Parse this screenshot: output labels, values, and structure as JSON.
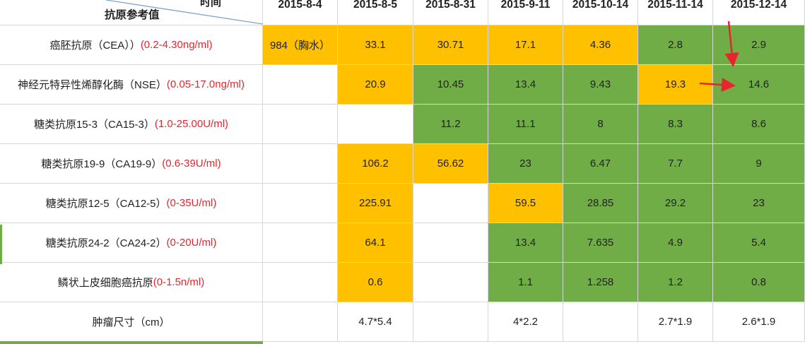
{
  "header": {
    "corner_top": "时间",
    "corner_bottom": "抗原参考值",
    "dates": [
      "2015-8-4",
      "2015-8-5",
      "2015-8-31",
      "2015-9-11",
      "2015-10-14",
      "2015-11-14",
      "2015-12-14"
    ]
  },
  "rows": [
    {
      "name": "癌胚抗原（CEA））",
      "range": "(0.2-4.30ng/ml)",
      "values": [
        "984（胸水）",
        "33.1",
        "30.71",
        "17.1",
        "4.36",
        "2.8",
        "2.9"
      ],
      "fills": [
        "orange",
        "orange",
        "orange",
        "orange",
        "orange",
        "green",
        "green"
      ]
    },
    {
      "name": "神经元特异性烯醇化酶（NSE）",
      "range": "(0.05-17.0ng/ml)",
      "values": [
        "",
        "20.9",
        "10.45",
        "13.4",
        "9.43",
        "19.3",
        "14.6"
      ],
      "fills": [
        "",
        "orange",
        "green",
        "green",
        "green",
        "orange",
        "green"
      ]
    },
    {
      "name": "糖类抗原15-3（CA15-3）",
      "range": "(1.0-25.00U/ml)",
      "values": [
        "",
        "",
        "11.2",
        "11.1",
        "8",
        "8.3",
        "8.6"
      ],
      "fills": [
        "",
        "",
        "green",
        "green",
        "green",
        "green",
        "green"
      ]
    },
    {
      "name": "糖类抗原19-9（CA19-9）",
      "range": "(0.6-39U/ml)",
      "values": [
        "",
        "106.2",
        "56.62",
        "23",
        "6.47",
        "7.7",
        "9"
      ],
      "fills": [
        "",
        "orange",
        "orange",
        "green",
        "green",
        "green",
        "green"
      ]
    },
    {
      "name": "糖类抗原12-5（CA12-5）",
      "range": "(0-35U/ml)",
      "values": [
        "",
        "225.91",
        "",
        "59.5",
        "28.85",
        "29.2",
        "23"
      ],
      "fills": [
        "",
        "orange",
        "",
        "orange",
        "green",
        "green",
        "green"
      ]
    },
    {
      "name": "糖类抗原24-2（CA24-2）",
      "range": "(0-20U/ml)",
      "values": [
        "",
        "64.1",
        "",
        "13.4",
        "7.635",
        "4.9",
        "5.4"
      ],
      "fills": [
        "",
        "orange",
        "",
        "green",
        "green",
        "green",
        "green"
      ]
    },
    {
      "name": "鳞状上皮细胞癌抗原",
      "range": "(0-1.5n/ml)",
      "values": [
        "",
        "0.6",
        "",
        "1.1",
        "1.258",
        "1.2",
        "0.8"
      ],
      "fills": [
        "",
        "orange",
        "",
        "green",
        "green",
        "green",
        "green"
      ]
    },
    {
      "name": "肿瘤尺寸（cm）",
      "range": "",
      "values": [
        "",
        "4.7*5.4",
        "",
        "4*2.2",
        "",
        "2.7*1.9",
        "2.6*1.9"
      ],
      "fills": [
        "",
        "",
        "",
        "",
        "",
        "",
        ""
      ]
    }
  ],
  "colors": {
    "orange": "#ffc000",
    "green": "#70ad47",
    "range_text": "#e8242c",
    "arrow": "#e8242c"
  }
}
